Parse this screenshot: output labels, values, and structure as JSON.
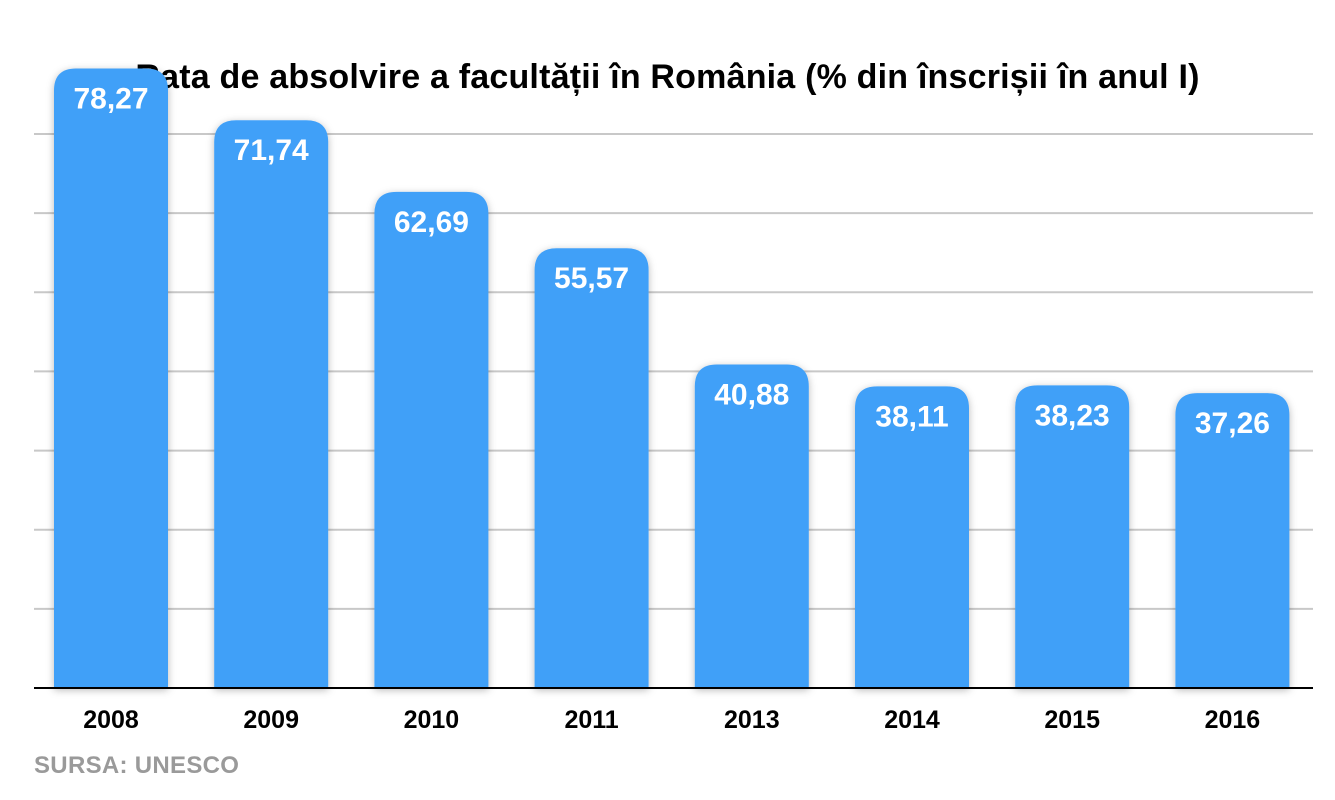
{
  "chart_data": {
    "type": "bar",
    "title": "Rata de absolvire a facultății în România (% din înscrișii în anul I)",
    "categories": [
      "2008",
      "2009",
      "2010",
      "2011",
      "2013",
      "2014",
      "2015",
      "2016"
    ],
    "values": [
      78.27,
      71.74,
      62.69,
      55.57,
      40.88,
      38.11,
      38.23,
      37.26
    ],
    "data_labels": [
      "78,27",
      "71,74",
      "62,69",
      "55,57",
      "40,88",
      "38,11",
      "38,23",
      "37,26"
    ],
    "xlabel": "",
    "ylabel": "",
    "ylim": [
      0,
      70
    ],
    "grid": true,
    "legend": "none",
    "bar_color": "#40a0f8",
    "grid_color": "#c8c8c8"
  },
  "source": "SURSA: UNESCO"
}
